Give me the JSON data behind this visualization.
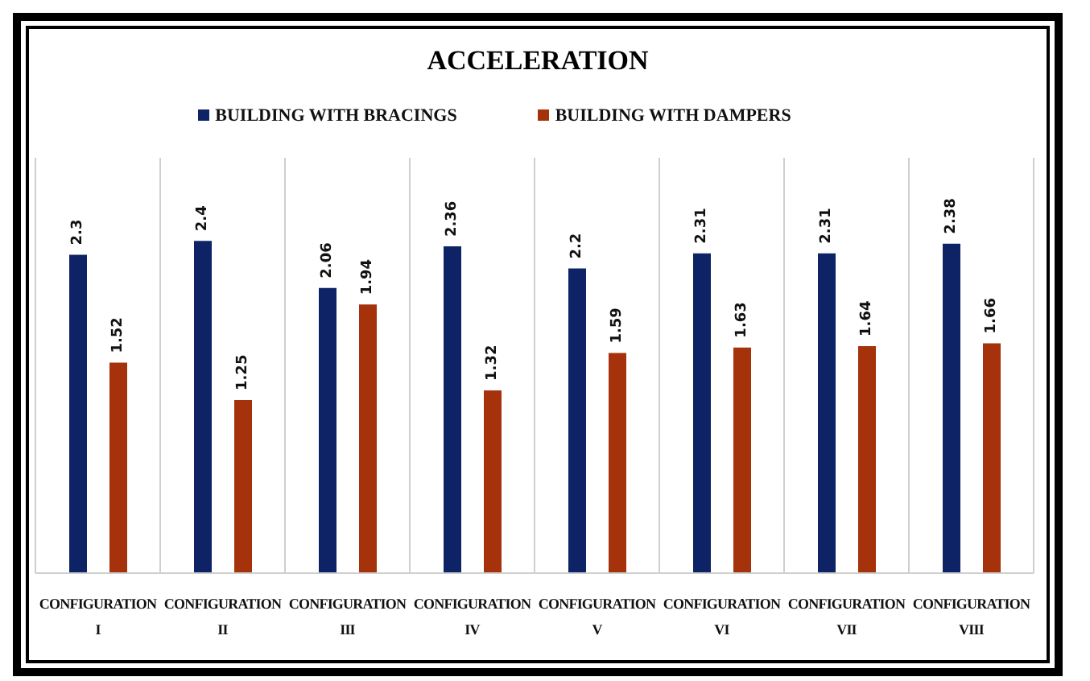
{
  "chart_data": {
    "type": "bar",
    "title": "ACCELERATION",
    "categories": [
      "CONFIGURATION I",
      "CONFIGURATION II",
      "CONFIGURATION III",
      "CONFIGURATION IV",
      "CONFIGURATION V",
      "CONFIGURATION VI",
      "CONFIGURATION VII",
      "CONFIGURATION VIII"
    ],
    "series": [
      {
        "name": "BUILDING WITH BRACINGS",
        "color": "#0d2366",
        "values": [
          2.3,
          2.4,
          2.06,
          2.36,
          2.2,
          2.31,
          2.31,
          2.38
        ]
      },
      {
        "name": "BUILDING WITH DAMPERS",
        "color": "#a5320a",
        "values": [
          1.52,
          1.25,
          1.94,
          1.32,
          1.59,
          1.63,
          1.64,
          1.66
        ]
      }
    ],
    "ylim": [
      0,
      3
    ],
    "data_labels": true,
    "grid": "x",
    "legend": "top",
    "tick_labels": "x"
  }
}
